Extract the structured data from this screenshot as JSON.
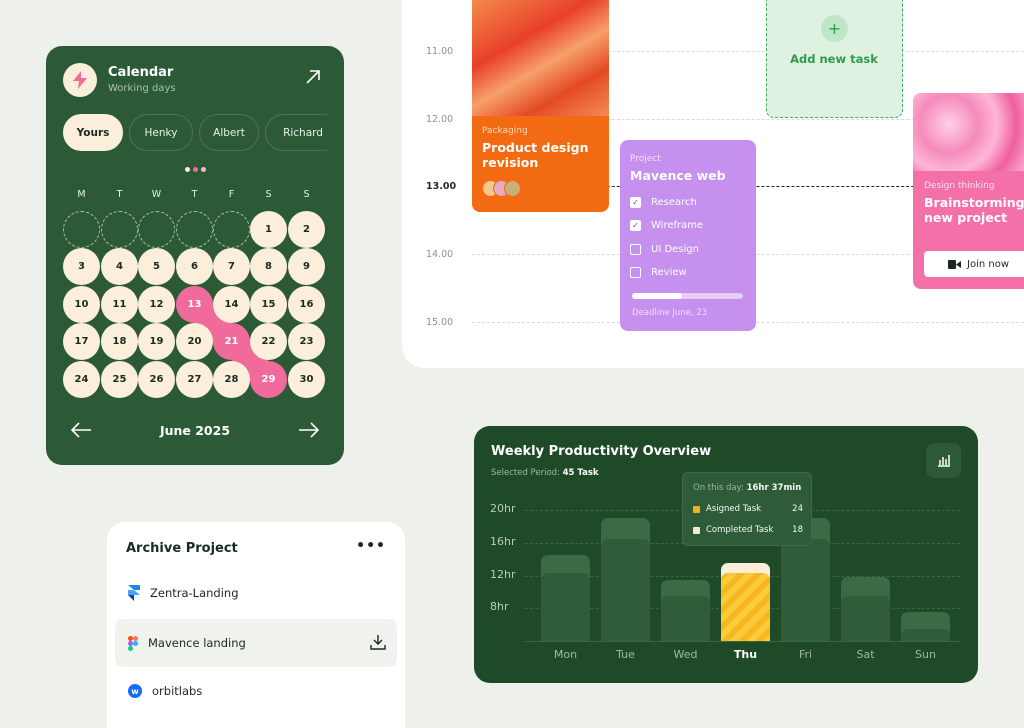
{
  "calendar": {
    "title": "Calendar",
    "subtitle": "Working days",
    "people": [
      "Yours",
      "Henky",
      "Albert",
      "Richard"
    ],
    "weekdays": [
      "M",
      "T",
      "W",
      "T",
      "F",
      "S",
      "S"
    ],
    "leading_empty": 5,
    "days_in_month": 30,
    "highlighted_days": [
      13,
      21,
      29
    ],
    "month_label": "June 2025",
    "colors": {
      "card": "#2c5a36",
      "day": "#fbefdb",
      "highlight": "#f06b9c"
    }
  },
  "schedule": {
    "times": [
      "11.00",
      "12.00",
      "13.00",
      "14.00",
      "15.00"
    ],
    "current_time": "13.00",
    "packaging_card": {
      "category": "Packaging",
      "title": "Product design revision"
    },
    "add_task": {
      "label": "Add new task"
    },
    "project_card": {
      "category": "Project",
      "title": "Mavence web",
      "tasks": [
        {
          "label": "Research",
          "done": true
        },
        {
          "label": "Wireframe",
          "done": true
        },
        {
          "label": "UI Design",
          "done": false
        },
        {
          "label": "Review",
          "done": false
        }
      ],
      "progress": 0.45,
      "deadline": "Deadline June, 23"
    },
    "design_card": {
      "category": "Design thinking",
      "title": "Brainstorming new project",
      "button": "Join now"
    }
  },
  "archive": {
    "title": "Archive Project",
    "more": "•••",
    "items": [
      {
        "name": "Zentra-Landing",
        "icon": "framer-icon"
      },
      {
        "name": "Mavence landing",
        "icon": "figma-icon",
        "selected": true
      },
      {
        "name": "orbitlabs",
        "icon": "webflow-icon"
      }
    ]
  },
  "productivity": {
    "title": "Weekly Productivity Overview",
    "selected_label": "Selected Period:",
    "selected_value": "45 Task",
    "tooltip": {
      "label": "On this day:",
      "value": "16hr 37min",
      "rows": [
        {
          "label": "Asigned Task",
          "value": "24"
        },
        {
          "label": "Completed Task",
          "value": "18"
        }
      ]
    }
  },
  "chart_data": {
    "type": "bar",
    "categories": [
      "Mon",
      "Tue",
      "Wed",
      "Thu",
      "Fri",
      "Sat",
      "Sun"
    ],
    "series": [
      {
        "name": "Asigned Task",
        "values": [
          14.5,
          19,
          11.5,
          13.5,
          19,
          11.8,
          7.5
        ]
      },
      {
        "name": "Completed Task",
        "values": [
          12.3,
          16.5,
          9.5,
          12.3,
          16.5,
          9.5,
          5.5
        ]
      }
    ],
    "y_ticks": [
      "20hr",
      "16hr",
      "12hr",
      "8hr"
    ],
    "ylim": [
      4,
      21.5
    ],
    "highlight_category": "Thu",
    "grid": true
  }
}
